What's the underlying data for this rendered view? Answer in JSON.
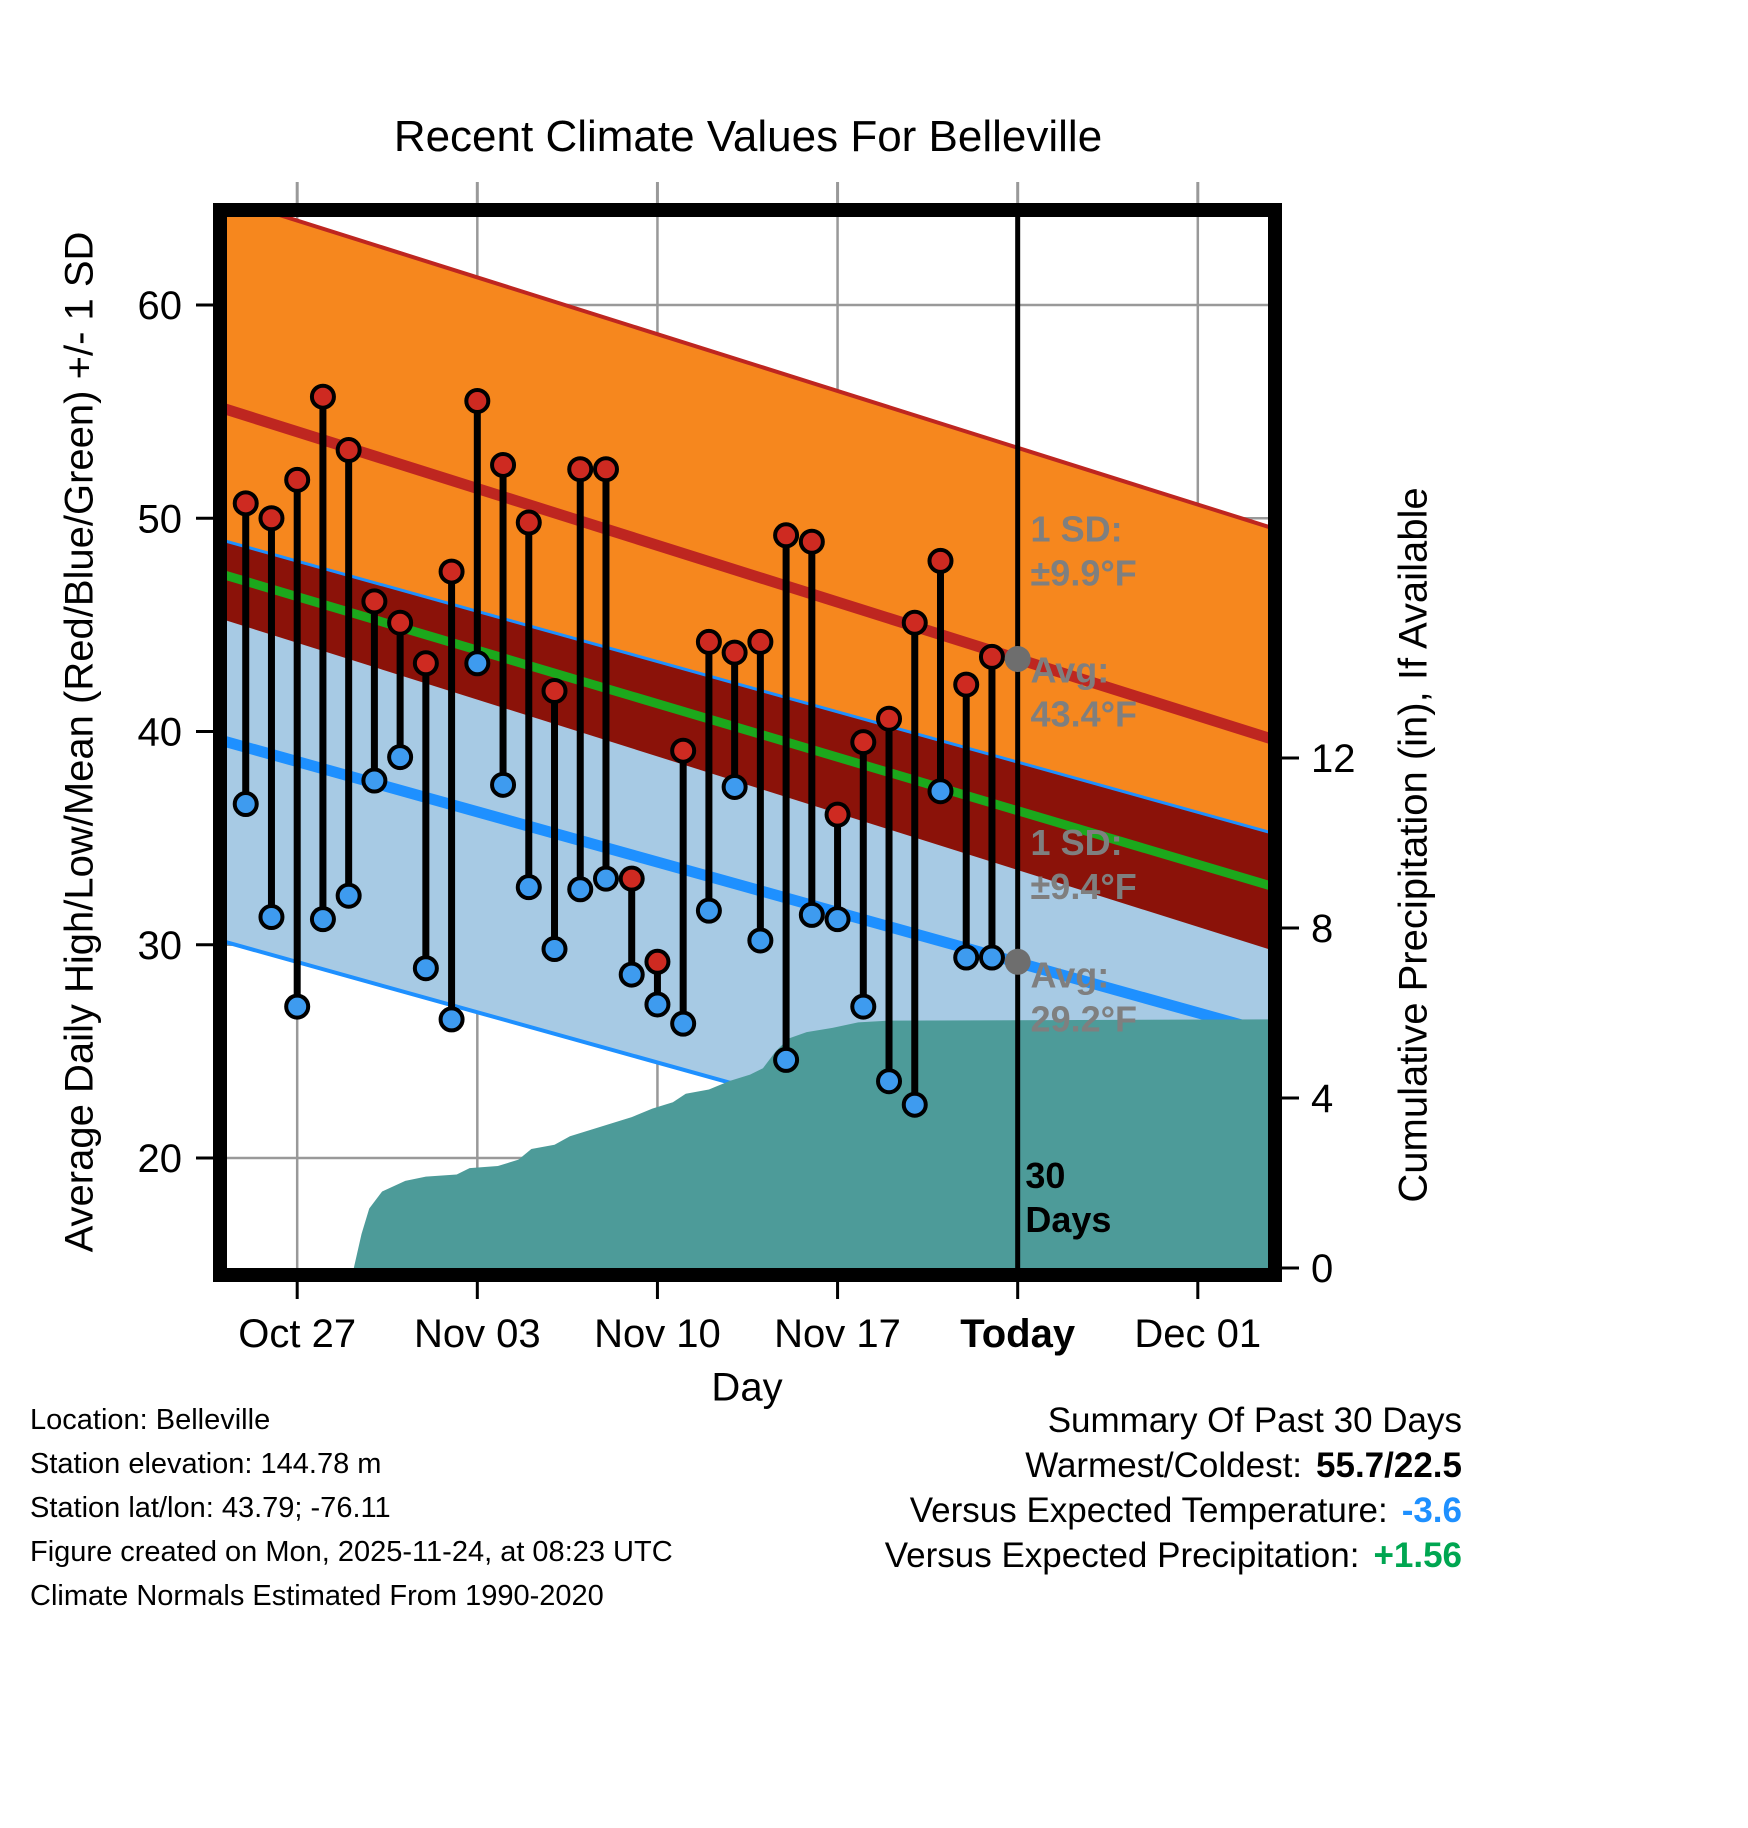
{
  "title": "Recent Climate Values For Belleville",
  "axes": {
    "left_label": "Average Daily High/Low/Mean (Red/Blue/Green) +/- 1 SD",
    "right_label": "Cumulative Precipitation (in), If Available",
    "x_label": "Day",
    "y_ticks": [
      20,
      30,
      40,
      50,
      60
    ],
    "right_ticks": [
      0,
      4,
      8,
      12
    ],
    "x_ticks": [
      {
        "day": 3,
        "label": "Oct 27",
        "bold": false
      },
      {
        "day": 10,
        "label": "Nov 03",
        "bold": false
      },
      {
        "day": 17,
        "label": "Nov 10",
        "bold": false
      },
      {
        "day": 24,
        "label": "Nov 17",
        "bold": false
      },
      {
        "day": 31,
        "label": "Today",
        "bold": true
      },
      {
        "day": 38,
        "label": "Dec 01",
        "bold": false
      }
    ]
  },
  "chart_data": {
    "type": "line",
    "subtype": "climate-normals-with-daily-high-low-stems-and-cumulative-precip-area",
    "title": "Recent Climate Values For Belleville",
    "xlabel": "Day",
    "ylabel": "Average Daily High/Low/Mean (Red/Blue/Green) +/- 1 SD",
    "y2label": "Cumulative Precipitation (in), If Available",
    "ylim_f": [
      14.5,
      64.5
    ],
    "y2lim_in": [
      0,
      12.7
    ],
    "grid": true,
    "normals": {
      "x_domain": [
        0,
        41
      ],
      "today_day": 31,
      "high_avg": {
        "start": 55.2,
        "end": 39.6
      },
      "high_sd": 9.9,
      "high_avg_today_f": 43.4,
      "low_avg": {
        "start": 39.6,
        "end": 25.8
      },
      "low_sd": 9.4,
      "low_avg_today_f": 29.2
    },
    "observations": {
      "days": [
        1,
        2,
        3,
        4,
        5,
        6,
        7,
        8,
        9,
        10,
        11,
        12,
        13,
        14,
        15,
        16,
        17,
        18,
        19,
        20,
        21,
        22,
        23,
        24,
        25,
        26,
        27,
        28,
        29,
        30
      ],
      "high_f": [
        50.7,
        50.0,
        51.8,
        55.7,
        53.2,
        46.1,
        45.1,
        43.2,
        47.5,
        55.5,
        52.5,
        49.8,
        41.9,
        52.3,
        52.3,
        33.1,
        29.2,
        39.1,
        44.2,
        43.7,
        44.2,
        49.2,
        48.9,
        36.1,
        39.5,
        40.6,
        45.1,
        48.0,
        42.2,
        43.5
      ],
      "low_f": [
        36.6,
        31.3,
        27.1,
        31.2,
        32.3,
        37.7,
        38.8,
        28.9,
        26.5,
        43.2,
        37.5,
        32.7,
        29.8,
        32.6,
        33.1,
        28.6,
        27.2,
        26.3,
        31.6,
        37.4,
        30.2,
        24.6,
        31.4,
        31.2,
        27.1,
        23.6,
        22.5,
        37.2,
        29.4,
        29.4
      ]
    },
    "precip_cumulative_in": [
      [
        5.2,
        0
      ],
      [
        5.5,
        0.8
      ],
      [
        5.8,
        1.4
      ],
      [
        6.3,
        1.8
      ],
      [
        7.2,
        2.05
      ],
      [
        8.0,
        2.15
      ],
      [
        9.2,
        2.2
      ],
      [
        9.7,
        2.35
      ],
      [
        10.8,
        2.4
      ],
      [
        11.6,
        2.55
      ],
      [
        12.1,
        2.8
      ],
      [
        13.0,
        2.9
      ],
      [
        13.6,
        3.1
      ],
      [
        14.4,
        3.25
      ],
      [
        15.2,
        3.4
      ],
      [
        16.0,
        3.55
      ],
      [
        16.8,
        3.75
      ],
      [
        17.6,
        3.9
      ],
      [
        18.1,
        4.1
      ],
      [
        19.0,
        4.2
      ],
      [
        19.8,
        4.4
      ],
      [
        20.6,
        4.55
      ],
      [
        21.1,
        4.7
      ],
      [
        21.6,
        5.1
      ],
      [
        22.1,
        5.4
      ],
      [
        22.8,
        5.55
      ],
      [
        23.8,
        5.65
      ],
      [
        24.8,
        5.78
      ],
      [
        26.0,
        5.82
      ],
      [
        41,
        5.85
      ]
    ],
    "today_avg_points": [
      {
        "day": 31,
        "temp_f": 43.4
      },
      {
        "day": 31,
        "temp_f": 29.2
      }
    ],
    "annotations": [
      {
        "day": 31.5,
        "temp_f": 48.9,
        "lines": [
          "1 SD:",
          "±9.9°F"
        ],
        "style": "gray"
      },
      {
        "day": 31.5,
        "temp_f": 42.3,
        "lines": [
          "Avg:",
          "43.4°F"
        ],
        "style": "gray"
      },
      {
        "day": 31.5,
        "temp_f": 34.2,
        "lines": [
          "1 SD:",
          "±9.4°F"
        ],
        "style": "gray"
      },
      {
        "day": 31.5,
        "temp_f": 28.0,
        "lines": [
          "Avg:",
          "29.2°F"
        ],
        "style": "gray"
      },
      {
        "day": 31.3,
        "temp_f": 18.6,
        "lines": [
          "30",
          "Days"
        ],
        "style": "black"
      }
    ]
  },
  "colors": {
    "high_band": "#F6871E",
    "high_line": "#BE2620",
    "overlap_band": "#8B1209",
    "mean_line": "#1CA81C",
    "low_band": "#A7CAE4",
    "low_line": "#1E90FF",
    "precip_fill": "#4D9B99",
    "obs_high_dot": "#CE2A21",
    "obs_low_dot": "#3E9BEF",
    "today_dot": "#6E6E6E",
    "grid": "#999999",
    "annotation_gray": "#7F7F7F",
    "temp_anomaly_value": "#1E90FF",
    "precip_anomaly_value": "#00A651"
  },
  "footer": {
    "lines": [
      "Location: Belleville",
      "Station elevation: 144.78 m",
      "Station lat/lon: 43.79; -76.11",
      "Figure created on Mon, 2025-11-24, at 08:23 UTC",
      "Climate Normals Estimated From 1990-2020"
    ]
  },
  "summary": {
    "title": "Summary Of Past 30 Days",
    "rows": [
      {
        "label": "Warmest/Coldest:",
        "value": "55.7/22.5"
      },
      {
        "label": "Versus Expected Temperature:",
        "value": "-3.6"
      },
      {
        "label": "Versus Expected Precipitation:",
        "value": "+1.56"
      }
    ]
  }
}
